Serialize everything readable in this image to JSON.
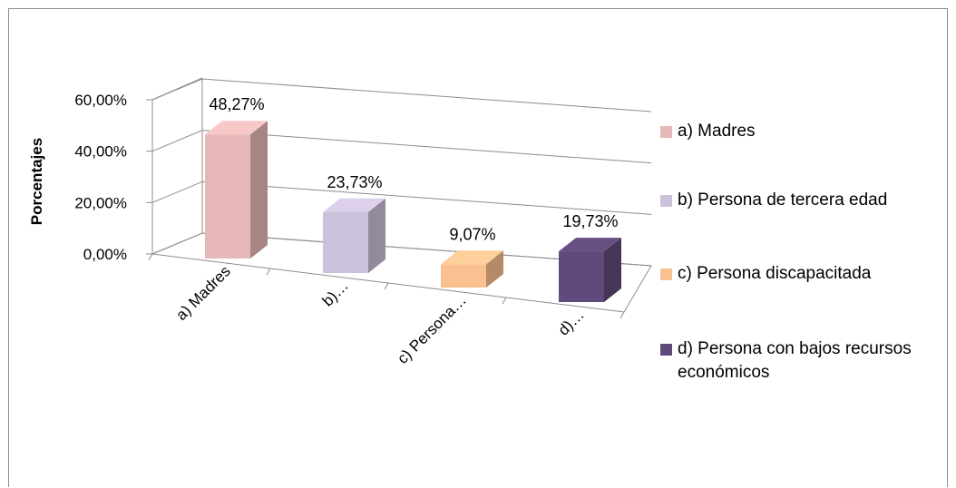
{
  "chart_data": {
    "type": "bar",
    "ylabel": "Porcentajes",
    "xlabel": "",
    "ylim": [
      0,
      60
    ],
    "y_ticks": [
      "0,00%",
      "20,00%",
      "40,00%",
      "60,00%"
    ],
    "categories": [
      "a) Madres",
      "b)…",
      "c) Persona…",
      "d)…"
    ],
    "values": [
      48.27,
      23.73,
      9.07,
      19.73
    ],
    "data_labels": [
      "48,27%",
      "23,73%",
      "9,07%",
      "19,73%"
    ],
    "colors": [
      "#E6B9B8",
      "#CCC1DA",
      "#FAC090",
      "#604A7B"
    ],
    "legend_position": "right",
    "legend": [
      "a) Madres",
      "b) Persona de tercera edad",
      "c) Persona discapacitada",
      "d) Persona con bajos recursos económicos"
    ],
    "grid": true,
    "three_d": true
  }
}
